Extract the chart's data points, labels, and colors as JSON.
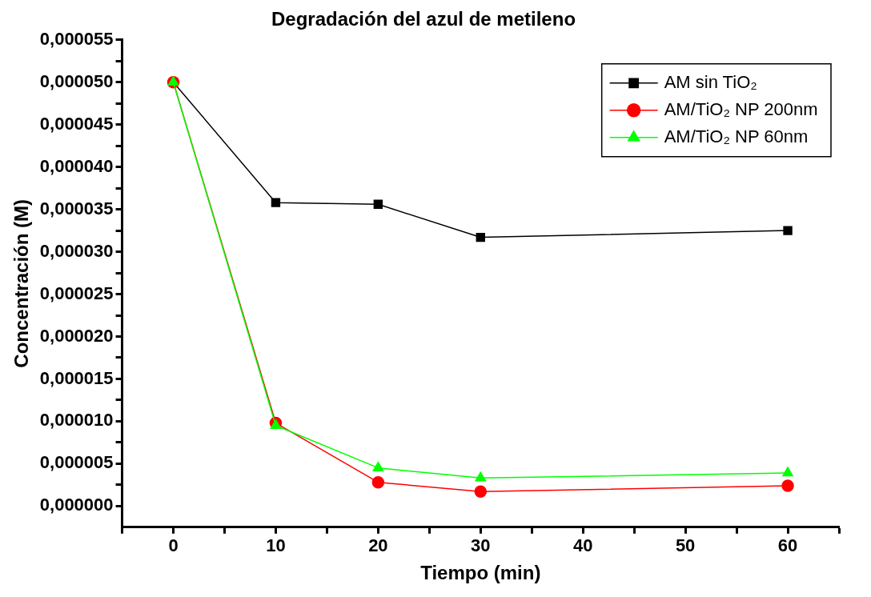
{
  "chart_data": {
    "type": "line",
    "title": "Degradación del azul de metileno",
    "xlabel": "Tiempo (min)",
    "ylabel": "Concentración (M)",
    "x": [
      0,
      10,
      20,
      30,
      60
    ],
    "series": [
      {
        "name": "AM sin TiO₂",
        "color": "#000000",
        "marker": "square",
        "values": [
          5e-05,
          3.58e-05,
          3.56e-05,
          3.17e-05,
          3.25e-05
        ]
      },
      {
        "name": "AM/TiO₂ NP 200nm",
        "color": "#ff0000",
        "marker": "circle",
        "values": [
          5e-05,
          9.8e-06,
          2.8e-06,
          1.7e-06,
          2.4e-06
        ]
      },
      {
        "name": "AM/TiO₂ NP 60nm",
        "color": "#00ff00",
        "marker": "triangle",
        "values": [
          5e-05,
          9.5e-06,
          4.5e-06,
          3.3e-06,
          3.9e-06
        ]
      }
    ],
    "xlim": [
      -5,
      65
    ],
    "xticks": [
      {
        "value": -5,
        "label": null
      },
      0,
      {
        "value": 5,
        "label": null
      },
      10,
      {
        "value": 15,
        "label": null
      },
      20,
      {
        "value": 25,
        "label": null
      },
      30,
      {
        "value": 35,
        "label": null
      },
      40,
      {
        "value": 45,
        "label": null
      },
      50,
      {
        "value": 55,
        "label": null
      },
      60,
      {
        "value": 65,
        "label": null
      }
    ],
    "ylim": [
      -2.5e-06,
      5.5e-05
    ],
    "yticks": [
      {
        "value": 0,
        "label": "0,000000"
      },
      {
        "value": 2.5e-06,
        "label": null
      },
      {
        "value": 5e-06,
        "label": "0,000005"
      },
      {
        "value": 7.5e-06,
        "label": null
      },
      {
        "value": 1e-05,
        "label": "0,000010"
      },
      {
        "value": 1.25e-05,
        "label": null
      },
      {
        "value": 1.5e-05,
        "label": "0,000015"
      },
      {
        "value": 1.75e-05,
        "label": null
      },
      {
        "value": 2e-05,
        "label": "0,000020"
      },
      {
        "value": 2.25e-05,
        "label": null
      },
      {
        "value": 2.5e-05,
        "label": "0,000025"
      },
      {
        "value": 2.75e-05,
        "label": null
      },
      {
        "value": 3e-05,
        "label": "0,000030"
      },
      {
        "value": 3.25e-05,
        "label": null
      },
      {
        "value": 3.5e-05,
        "label": "0,000035"
      },
      {
        "value": 3.75e-05,
        "label": null
      },
      {
        "value": 4e-05,
        "label": "0,000040"
      },
      {
        "value": 4.25e-05,
        "label": null
      },
      {
        "value": 4.5e-05,
        "label": "0,000045"
      },
      {
        "value": 4.75e-05,
        "label": null
      },
      {
        "value": 5e-05,
        "label": "0,000050"
      },
      {
        "value": 5.25e-05,
        "label": null
      },
      {
        "value": 5.5e-05,
        "label": "0,000055"
      }
    ],
    "grid": false,
    "legend": "top right",
    "line_style": "solid"
  }
}
